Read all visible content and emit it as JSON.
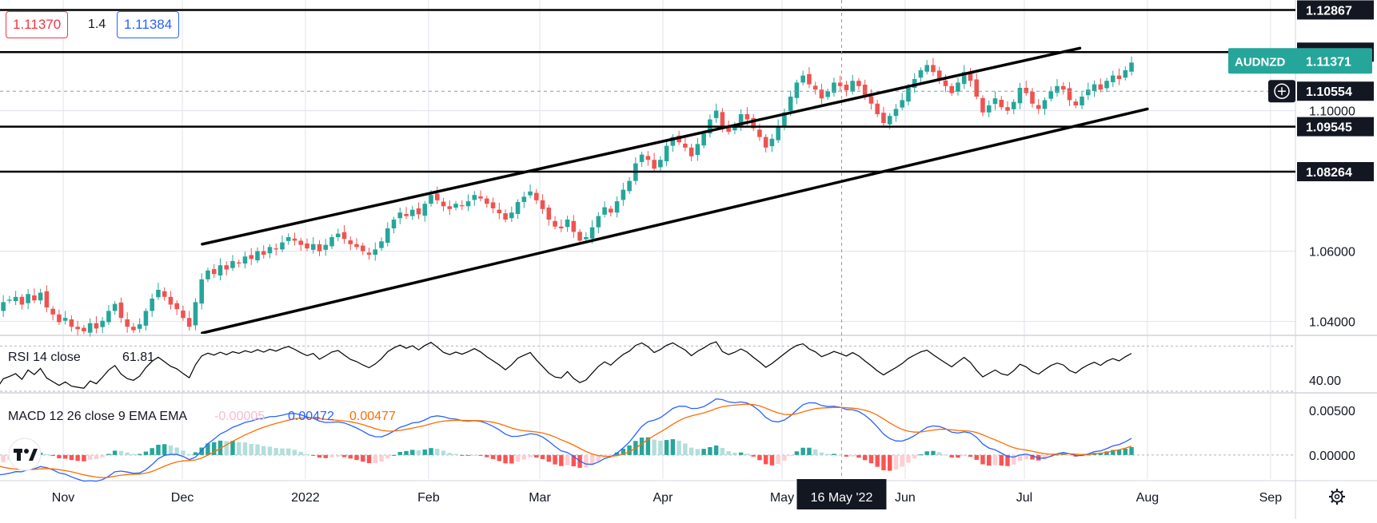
{
  "chart_data": {
    "type": "candlestick",
    "symbol": "AUDNZD",
    "quote": {
      "bid": "1.11370",
      "spread": "1.4",
      "ask": "1.11384"
    },
    "price_axis": {
      "ylim": [
        1.0365,
        1.1315
      ],
      "ticks": [
        1.04,
        1.06,
        1.1
      ],
      "tick_labels": [
        "1.04000",
        "1.06000",
        "1.10000"
      ]
    },
    "time_axis": {
      "labels": [
        "Nov",
        "Dec",
        "2022",
        "Feb",
        "Mar",
        "Apr",
        "May",
        "Jun",
        "Jul",
        "Aug",
        "Sep"
      ],
      "crosshair_date": "16 May '22"
    },
    "horizontal_levels": [
      {
        "value": 1.12867,
        "label": "1.12867"
      },
      {
        "value": 1.11666,
        "label": "1.11666"
      },
      {
        "value": 1.09545,
        "label": "1.09545"
      },
      {
        "value": 1.08264,
        "label": "1.08264"
      }
    ],
    "crosshair_price": {
      "value": 1.10554,
      "label": "1.10554"
    },
    "last_price": {
      "value": 1.11371,
      "label": "1.11371",
      "symbol_label": "AUDNZD"
    },
    "channel": {
      "upper": [
        {
          "date": "2021-12-06",
          "price": 1.062
        },
        {
          "date": "2022-07-15",
          "price": 1.1178
        }
      ],
      "lower": [
        {
          "date": "2021-12-06",
          "price": 1.0367
        },
        {
          "date": "2022-08-01",
          "price": 1.1005
        }
      ]
    },
    "series_closes": [
      1.052,
      1.0485,
      1.0458,
      1.0432,
      1.044,
      1.0418,
      1.043,
      1.0455,
      1.0462,
      1.047,
      1.0448,
      1.0478,
      1.046,
      1.0482,
      1.044,
      1.042,
      1.0398,
      1.041,
      1.0385,
      1.0378,
      1.0372,
      1.0395,
      1.038,
      1.0402,
      1.043,
      1.045,
      1.041,
      1.0385,
      1.0375,
      1.0392,
      1.043,
      1.0465,
      1.049,
      1.047,
      1.0448,
      1.0435,
      1.041,
      1.0385,
      1.0455,
      1.052,
      1.0545,
      1.0535,
      1.056,
      1.0548,
      1.0572,
      1.0565,
      1.0585,
      1.0578,
      1.06,
      1.059,
      1.0612,
      1.0605,
      1.0625,
      1.064,
      1.063,
      1.0618,
      1.0608,
      1.062,
      1.06,
      1.0618,
      1.064,
      1.065,
      1.0635,
      1.062,
      1.0612,
      1.06,
      1.059,
      1.0605,
      1.0628,
      1.0665,
      1.069,
      1.071,
      1.07,
      1.0718,
      1.0705,
      1.0735,
      1.076,
      1.0745,
      1.0728,
      1.072,
      1.0735,
      1.0728,
      1.0742,
      1.076,
      1.075,
      1.0735,
      1.0722,
      1.0708,
      1.069,
      1.071,
      1.074,
      1.0755,
      1.077,
      1.0745,
      1.072,
      1.069,
      1.067,
      1.0665,
      1.069,
      1.0655,
      1.063,
      1.064,
      1.0668,
      1.07,
      1.0725,
      1.071,
      1.0742,
      1.0775,
      1.08,
      1.085,
      1.0875,
      1.086,
      1.0835,
      1.086,
      1.09,
      1.0925,
      1.091,
      1.0895,
      1.087,
      1.0905,
      1.0935,
      1.0975,
      1.1,
      1.0955,
      1.094,
      1.096,
      1.099,
      1.0975,
      1.095,
      1.0925,
      1.0895,
      1.092,
      1.0955,
      1.0995,
      1.104,
      1.108,
      1.11,
      1.1075,
      1.106,
      1.1035,
      1.1055,
      1.108,
      1.107,
      1.1058,
      1.1085,
      1.107,
      1.1045,
      1.102,
      1.099,
      1.0965,
      1.0985,
      1.1005,
      1.103,
      1.1065,
      1.109,
      1.1115,
      1.113,
      1.111,
      1.109,
      1.107,
      1.105,
      1.108,
      1.111,
      1.1085,
      1.104,
      1.0995,
      1.1015,
      1.1035,
      1.101,
      1.1,
      1.1025,
      1.1065,
      1.105,
      1.102,
      1.1005,
      1.103,
      1.1055,
      1.107,
      1.106,
      1.103,
      1.1015,
      1.104,
      1.106,
      1.1075,
      1.106,
      1.1085,
      1.11,
      1.109,
      1.1115,
      1.1137
    ],
    "rsi": {
      "label": "RSI 14 close",
      "value": "61.81",
      "ylim": [
        30,
        78
      ],
      "ticks": [
        40
      ],
      "tick_labels": [
        "40.00"
      ]
    },
    "macd": {
      "label": "MACD 12 26 close 9 EMA EMA",
      "histogram_value": "-0.00005",
      "macd_value": "0.00472",
      "signal_value": "0.00477",
      "ylim": [
        -0.0027,
        0.0068
      ],
      "ticks": [
        0,
        0.005
      ],
      "tick_labels": [
        "0.00000",
        "0.00500"
      ]
    },
    "colors": {
      "up": "#26a69a",
      "down": "#ef5350",
      "macd_line": "#2962ff",
      "signal_line": "#ff6d00",
      "label_bg": "#131722",
      "last_price_bg": "#26a69a"
    },
    "icons": {
      "crosshair_add": "plus-circle-icon",
      "settings": "gear-icon",
      "logo": "tradingview-logo-icon"
    }
  }
}
